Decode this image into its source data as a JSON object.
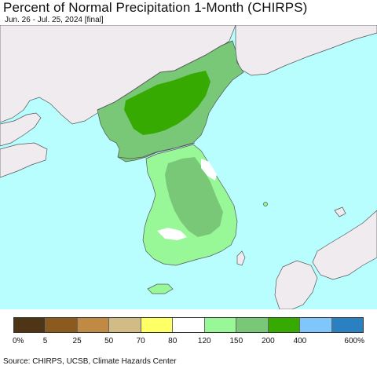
{
  "title": "Percent of Normal Precipitation 1-Month (CHIRPS)",
  "subtitle": "Jun. 26 - Jul. 25, 2024 [final]",
  "source": "Source: CHIRPS, UCSB, Climate Hazards Center",
  "legend": {
    "colors": [
      "#4d3515",
      "#8a5a1e",
      "#c08a45",
      "#d1bc86",
      "#ffff66",
      "#ffffff",
      "#98f898",
      "#78c878",
      "#36aa00",
      "#7fc6fa",
      "#2a80c0"
    ],
    "ticks": [
      "0%",
      "5",
      "25",
      "50",
      "70",
      "80",
      "120",
      "150",
      "200",
      "400",
      "600%"
    ]
  },
  "map": {
    "colors": {
      "sea": "#b8fefe",
      "land_outside": "#efebef",
      "above_120_150": "#98f898",
      "above_150_200": "#78c878",
      "above_200_400": "#36aa00",
      "near_normal": "#ffffff",
      "border": "#555555"
    }
  }
}
